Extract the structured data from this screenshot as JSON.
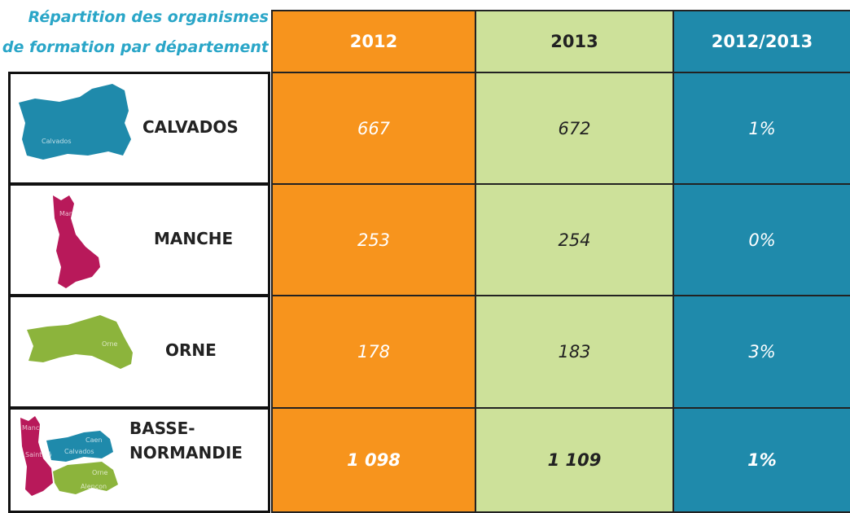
{
  "title": [
    "Répartition des organismes",
    "de formation par département"
  ],
  "table": {
    "header": [
      "2012",
      "2013",
      "2012/2013"
    ],
    "rows": [
      {
        "department": [
          "CALVADOS"
        ],
        "map_labels": [
          "Calvados"
        ],
        "values": [
          "667",
          "672",
          "1%"
        ]
      },
      {
        "department": [
          "MANCHE"
        ],
        "map_labels": [
          "Manche"
        ],
        "values": [
          "253",
          "254",
          "0%"
        ]
      },
      {
        "department": [
          "ORNE"
        ],
        "map_labels": [
          "Orne"
        ],
        "values": [
          "178",
          "183",
          "3%"
        ]
      },
      {
        "department": [
          "BASSE-",
          "NORMANDIE"
        ],
        "map_labels": [
          "Manche",
          "Saint-Lô",
          "Caen",
          "Calvados",
          "Orne",
          "Alençon"
        ],
        "values": [
          "1 098",
          "1 109",
          "1%"
        ]
      }
    ]
  }
}
